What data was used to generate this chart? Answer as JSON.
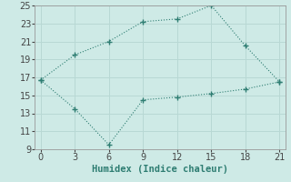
{
  "line1_x": [
    0,
    3,
    6,
    9,
    12,
    15,
    18,
    21
  ],
  "line1_y": [
    16.7,
    19.5,
    21.0,
    23.2,
    23.5,
    25.0,
    20.5,
    16.5
  ],
  "line2_x": [
    0,
    3,
    6,
    9,
    12,
    15,
    18,
    21
  ],
  "line2_y": [
    16.7,
    13.5,
    9.5,
    14.5,
    14.8,
    15.2,
    15.7,
    16.5
  ],
  "line_color": "#2e7d72",
  "bg_color": "#ceeae6",
  "grid_color": "#b8d8d4",
  "xlabel": "Humidex (Indice chaleur)",
  "xlim": [
    -0.5,
    21.5
  ],
  "ylim": [
    9,
    25
  ],
  "xticks": [
    0,
    3,
    6,
    9,
    12,
    15,
    18,
    21
  ],
  "yticks": [
    9,
    11,
    13,
    15,
    17,
    19,
    21,
    23,
    25
  ],
  "xlabel_fontsize": 7.5,
  "tick_fontsize": 7
}
